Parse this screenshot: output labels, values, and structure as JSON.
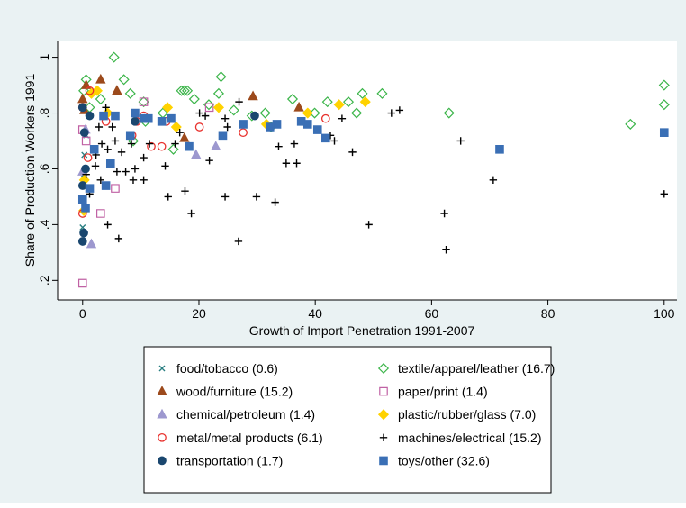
{
  "chart_data": {
    "type": "scatter",
    "y_label": "Share of Production Workers 1991",
    "x_label": "Growth of Import Penetration 1991-2007",
    "xlim": [
      -4.3,
      102.2
    ],
    "ylim": [
      0.13,
      1.06
    ],
    "xticks": [
      0,
      20,
      40,
      60,
      80,
      100
    ],
    "yticks": [
      {
        "value": 0.2,
        "label": ".2"
      },
      {
        "value": 0.4,
        "label": ".4"
      },
      {
        "value": 0.6,
        "label": ".6"
      },
      {
        "value": 0.8,
        "label": ".8"
      },
      1
    ],
    "series": [
      {
        "name": "food/tobacco (0.6)",
        "color": "#2a7f82",
        "marker": "x",
        "x": [
          0,
          0.3,
          0.6,
          0.2
        ],
        "y": [
          0.39,
          0.65,
          0.72,
          0.58
        ]
      },
      {
        "name": "textile/apparel/leather (16.7)",
        "color": "#3cb54a",
        "marker": "diamond-hollow",
        "x": [
          5.4,
          7.1,
          23.8,
          0.6,
          13.8,
          17.0,
          17.5,
          18.0,
          19.2,
          21.7,
          23.4,
          26.0,
          29.1,
          31.4,
          32.4,
          36.1,
          39.9,
          42.1,
          45.7,
          47.1,
          48.1,
          51.5,
          63.0,
          94.2,
          100,
          100,
          0.2,
          1.2,
          3.1,
          8.2,
          15.6,
          10.8,
          8.7,
          10.5
        ],
        "y": [
          1.0,
          0.92,
          0.93,
          0.92,
          0.8,
          0.88,
          0.88,
          0.88,
          0.85,
          0.83,
          0.87,
          0.81,
          0.79,
          0.8,
          0.75,
          0.85,
          0.8,
          0.84,
          0.84,
          0.8,
          0.87,
          0.87,
          0.8,
          0.76,
          0.9,
          0.83,
          0.88,
          0.82,
          0.85,
          0.87,
          0.67,
          0.77,
          0.7,
          0.84
        ]
      },
      {
        "name": "wood/furniture (15.2)",
        "color": "#9c4a1c",
        "marker": "triangle",
        "x": [
          0.6,
          3.1,
          5.9,
          17.5,
          29.3,
          37.2,
          0.3,
          0
        ],
        "y": [
          0.9,
          0.92,
          0.88,
          0.71,
          0.86,
          0.82,
          0.81,
          0.85
        ]
      },
      {
        "name": "paper/print (1.4)",
        "color": "#c061a4",
        "marker": "square-hollow",
        "x": [
          0,
          3.1,
          5.6,
          21.8,
          0.6,
          10.5,
          0
        ],
        "y": [
          0.19,
          0.44,
          0.53,
          0.82,
          0.7,
          0.84,
          0.74
        ]
      },
      {
        "name": "chemical/petroleum (1.4)",
        "color": "#9d98cf",
        "marker": "triangle",
        "x": [
          1.5,
          19.5,
          22.9,
          0,
          0.5
        ],
        "y": [
          0.33,
          0.65,
          0.68,
          0.59,
          0.74
        ]
      },
      {
        "name": "plastic/rubber/glass (7.0)",
        "color": "#ffd200",
        "marker": "diamond",
        "x": [
          1.5,
          2.5,
          4.3,
          14.6,
          16.1,
          23.4,
          31.6,
          38.7,
          44.1,
          48.6,
          0.2,
          0.3
        ],
        "y": [
          0.87,
          0.88,
          0.8,
          0.82,
          0.75,
          0.82,
          0.76,
          0.8,
          0.83,
          0.84,
          0.45,
          0.56
        ]
      },
      {
        "name": "metal/metal products (6.1)",
        "color": "#e8312d",
        "marker": "circle-hollow",
        "x": [
          0,
          0,
          1.2,
          4.0,
          8.5,
          11.8,
          13.6,
          27.6,
          41.8,
          20.1,
          0.9,
          9.3,
          10.5,
          14.4
        ],
        "y": [
          0.44,
          0.82,
          0.88,
          0.77,
          0.72,
          0.68,
          0.68,
          0.73,
          0.78,
          0.75,
          0.64,
          0.77,
          0.79,
          0.77
        ]
      },
      {
        "name": "machines/electrical (15.2)",
        "color": "#000000",
        "marker": "plus",
        "x": [
          4.3,
          6.2,
          14.7,
          17.6,
          18.7,
          24.5,
          33.1,
          26.8,
          29.9,
          49.2,
          62.2,
          62.5,
          70.6,
          100,
          65.0,
          53.1,
          54.5,
          42.6,
          44.6,
          43.3,
          46.4,
          36.8,
          35.0,
          36.4,
          33.7,
          26.9,
          24.9,
          24.5,
          21.8,
          20.1,
          16.7,
          15.9,
          14.2,
          11.5,
          10.5,
          9.0,
          8.7,
          7.4,
          6.7,
          5.6,
          4.3,
          3.1,
          2.2,
          1.2,
          0.6,
          4.0,
          5.1,
          2.8,
          5.9,
          8.4,
          10.5,
          3.3,
          2.3,
          21.1
        ],
        "y": [
          0.4,
          0.35,
          0.5,
          0.52,
          0.44,
          0.5,
          0.48,
          0.34,
          0.5,
          0.4,
          0.44,
          0.31,
          0.56,
          0.51,
          0.7,
          0.8,
          0.81,
          0.72,
          0.78,
          0.7,
          0.66,
          0.62,
          0.62,
          0.69,
          0.68,
          0.84,
          0.75,
          0.78,
          0.63,
          0.8,
          0.73,
          0.69,
          0.61,
          0.69,
          0.64,
          0.6,
          0.56,
          0.59,
          0.66,
          0.7,
          0.67,
          0.56,
          0.61,
          0.51,
          0.58,
          0.82,
          0.75,
          0.75,
          0.59,
          0.69,
          0.56,
          0.69,
          0.65,
          0.79
        ]
      },
      {
        "name": "transportation (1.7)",
        "color": "#1a476f",
        "marker": "circle",
        "x": [
          0,
          0.2,
          0,
          0.5,
          0.3,
          1.2,
          0,
          29.6,
          9.0
        ],
        "y": [
          0.34,
          0.37,
          0.54,
          0.6,
          0.73,
          0.79,
          0.82,
          0.79,
          0.77
        ]
      },
      {
        "name": "toys/other (32.6)",
        "color": "#3a6fb5",
        "marker": "square",
        "x": [
          100,
          71.7,
          41.8,
          40.4,
          38.7,
          37.6,
          33.4,
          32.2,
          27.6,
          24.1,
          18.3,
          15.2,
          13.6,
          11.3,
          10.5,
          9.0,
          8.2,
          4.8,
          4.0,
          1.2,
          2.0,
          5.6,
          3.6,
          0,
          0.5
        ],
        "y": [
          0.73,
          0.67,
          0.71,
          0.74,
          0.76,
          0.77,
          0.76,
          0.75,
          0.76,
          0.72,
          0.68,
          0.78,
          0.77,
          0.78,
          0.78,
          0.8,
          0.72,
          0.62,
          0.54,
          0.53,
          0.67,
          0.79,
          0.79,
          0.49,
          0.46
        ]
      }
    ]
  }
}
